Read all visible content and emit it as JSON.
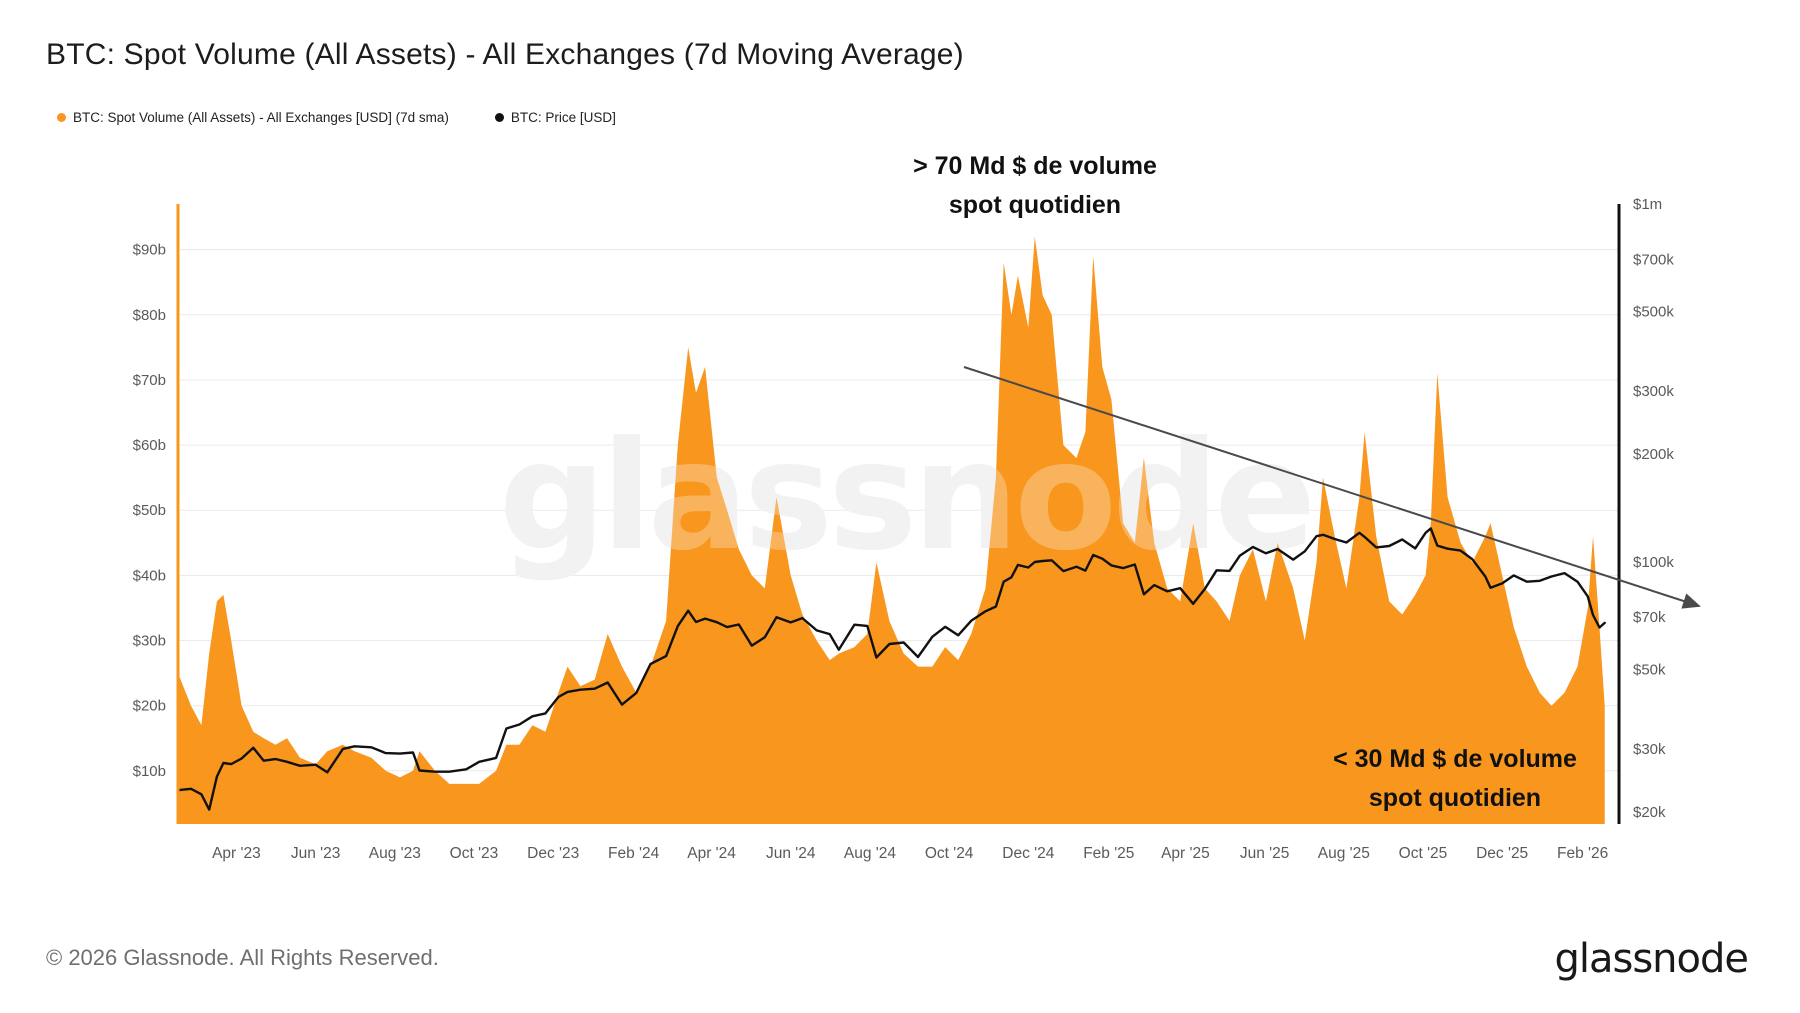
{
  "header": {
    "title": "BTC: Spot Volume (All Assets) - All Exchanges (7d Moving Average)",
    "legend": [
      {
        "label": "BTC: Spot Volume (All Assets) - All Exchanges [USD] (7d sma)",
        "color": "#F8961E",
        "marker": "dot"
      },
      {
        "label": "BTC: Price [USD]",
        "color": "#111111",
        "marker": "dot"
      }
    ]
  },
  "annotations": {
    "high_volume": {
      "line1": "> 70 Md $ de volume",
      "line2": "spot quotidien"
    },
    "low_volume": {
      "line1": "< 30 Md $ de volume",
      "line2": "spot quotidien"
    },
    "trend_arrow": {
      "from": [
        964,
        367
      ],
      "to": [
        1699,
        606
      ],
      "color": "#4a4a4a"
    }
  },
  "watermark": {
    "text": "glassnode",
    "color": "#ededed"
  },
  "footer": {
    "copyright": "© 2026 Glassnode. All Rights Reserved.",
    "brand": "glassnode"
  },
  "chart_data": {
    "type": "area+line",
    "title": "BTC: Spot Volume (All Assets) - All Exchanges (7d Moving Average)",
    "legend_position": "top-left",
    "grid": "horizontal",
    "x": [
      "2023-02-15",
      "2023-02-25",
      "2023-03-05",
      "2023-03-11",
      "2023-03-17",
      "2023-03-22",
      "2023-03-28",
      "2023-04-05",
      "2023-04-14",
      "2023-04-22",
      "2023-05-01",
      "2023-05-10",
      "2023-05-20",
      "2023-06-01",
      "2023-06-10",
      "2023-06-22",
      "2023-07-01",
      "2023-07-14",
      "2023-07-25",
      "2023-08-05",
      "2023-08-15",
      "2023-08-20",
      "2023-09-01",
      "2023-09-12",
      "2023-09-25",
      "2023-10-05",
      "2023-10-18",
      "2023-10-26",
      "2023-11-05",
      "2023-11-15",
      "2023-11-25",
      "2023-12-05",
      "2023-12-12",
      "2023-12-22",
      "2024-01-02",
      "2024-01-12",
      "2024-01-23",
      "2024-02-03",
      "2024-02-14",
      "2024-02-26",
      "2024-03-06",
      "2024-03-14",
      "2024-03-20",
      "2024-03-27",
      "2024-04-05",
      "2024-04-13",
      "2024-04-22",
      "2024-05-02",
      "2024-05-12",
      "2024-05-21",
      "2024-06-01",
      "2024-06-10",
      "2024-06-21",
      "2024-07-01",
      "2024-07-08",
      "2024-07-20",
      "2024-07-30",
      "2024-08-06",
      "2024-08-16",
      "2024-08-27",
      "2024-09-07",
      "2024-09-18",
      "2024-09-28",
      "2024-10-08",
      "2024-10-18",
      "2024-10-29",
      "2024-11-06",
      "2024-11-12",
      "2024-11-18",
      "2024-11-23",
      "2024-12-01",
      "2024-12-06",
      "2024-12-12",
      "2024-12-19",
      "2024-12-28",
      "2025-01-07",
      "2025-01-14",
      "2025-01-20",
      "2025-01-27",
      "2025-02-03",
      "2025-02-12",
      "2025-02-21",
      "2025-02-28",
      "2025-03-08",
      "2025-03-18",
      "2025-03-28",
      "2025-04-07",
      "2025-04-16",
      "2025-04-25",
      "2025-05-05",
      "2025-05-13",
      "2025-05-23",
      "2025-06-02",
      "2025-06-11",
      "2025-06-23",
      "2025-07-02",
      "2025-07-11",
      "2025-07-16",
      "2025-07-25",
      "2025-08-03",
      "2025-08-13",
      "2025-08-17",
      "2025-08-26",
      "2025-09-05",
      "2025-09-15",
      "2025-09-25",
      "2025-10-03",
      "2025-10-07",
      "2025-10-12",
      "2025-10-20",
      "2025-10-30",
      "2025-11-08",
      "2025-11-18",
      "2025-11-22",
      "2025-12-01",
      "2025-12-10",
      "2025-12-20",
      "2025-12-30",
      "2026-01-08",
      "2026-01-18",
      "2026-01-28",
      "2026-02-05",
      "2026-02-09",
      "2026-02-14",
      "2026-02-18"
    ],
    "series": [
      {
        "name": "BTC: Spot Volume (All Assets) - All Exchanges [USD] (7d sma)",
        "type": "area",
        "axis": "left",
        "color": "#F8961E",
        "unit": "USD billions",
        "values": [
          25,
          20,
          17,
          28,
          36,
          37,
          30,
          20,
          16,
          15,
          14,
          15,
          12,
          11,
          13,
          14,
          13,
          12,
          10,
          9,
          10,
          13,
          10,
          8,
          8,
          8,
          10,
          14,
          14,
          17,
          16,
          22,
          26,
          23,
          24,
          31,
          26,
          22,
          26,
          33,
          60,
          75,
          68,
          72,
          55,
          50,
          44,
          40,
          38,
          52,
          40,
          34,
          30,
          27,
          28,
          29,
          31,
          42,
          33,
          28,
          26,
          26,
          29,
          27,
          31,
          38,
          55,
          88,
          80,
          86,
          78,
          92,
          83,
          80,
          60,
          58,
          62,
          89,
          72,
          67,
          48,
          45,
          58,
          45,
          38,
          36,
          48,
          38,
          36,
          33,
          40,
          44,
          36,
          45,
          38,
          30,
          42,
          55,
          46,
          38,
          52,
          62,
          46,
          36,
          34,
          37,
          40,
          48,
          71,
          52,
          45,
          42,
          46,
          48,
          40,
          32,
          26,
          22,
          20,
          22,
          26,
          35,
          46,
          32,
          20
        ]
      },
      {
        "name": "BTC: Price [USD]",
        "type": "line",
        "axis": "right",
        "color": "#111111",
        "unit": "USD thousands",
        "values": [
          23.0,
          23.2,
          22.4,
          20.3,
          25.1,
          27.4,
          27.2,
          28.2,
          30.2,
          27.8,
          28.1,
          27.6,
          26.9,
          27.1,
          25.8,
          30.0,
          30.5,
          30.3,
          29.2,
          29.1,
          29.3,
          26.1,
          25.9,
          25.9,
          26.3,
          27.6,
          28.3,
          34.2,
          35.1,
          37.0,
          37.7,
          41.9,
          43.3,
          43.9,
          44.2,
          46.0,
          39.9,
          43.0,
          51.8,
          54.5,
          66.1,
          73.0,
          67.9,
          69.4,
          67.8,
          65.7,
          66.8,
          58.3,
          61.5,
          70.0,
          67.7,
          69.6,
          64.3,
          62.8,
          56.8,
          66.7,
          66.2,
          54.0,
          58.9,
          59.5,
          54.2,
          61.7,
          65.8,
          62.3,
          68.4,
          72.7,
          75.0,
          88.0,
          90.5,
          98.0,
          96.4,
          99.9,
          100.5,
          101.0,
          94.2,
          96.9,
          94.5,
          104.5,
          102.0,
          97.7,
          96.0,
          98.3,
          81.1,
          86.1,
          82.7,
          84.4,
          76.3,
          84.0,
          94.7,
          94.3,
          104.1,
          110.0,
          105.6,
          108.6,
          101.4,
          107.0,
          117.9,
          119.0,
          115.8,
          113.2,
          120.5,
          117.4,
          109.7,
          110.7,
          115.4,
          109.0,
          120.5,
          124.0,
          111.0,
          108.8,
          107.5,
          101.7,
          91.0,
          84.6,
          87.0,
          91.6,
          88.0,
          88.5,
          91.0,
          93.0,
          88.0,
          80.0,
          71.0,
          65.5,
          67.5
        ]
      }
    ],
    "left_axis": {
      "scale": "linear",
      "unit": "USD billions",
      "min": 0,
      "max": 97,
      "ticks": [
        {
          "value": 10,
          "label": "$10b"
        },
        {
          "value": 20,
          "label": "$20b"
        },
        {
          "value": 30,
          "label": "$30b"
        },
        {
          "value": 40,
          "label": "$40b"
        },
        {
          "value": 50,
          "label": "$50b"
        },
        {
          "value": 60,
          "label": "$60b"
        },
        {
          "value": 70,
          "label": "$70b"
        },
        {
          "value": 80,
          "label": "$80b"
        },
        {
          "value": 90,
          "label": "$90b"
        }
      ]
    },
    "right_axis": {
      "scale": "log",
      "unit": "USD thousands",
      "min_k": 18.5,
      "max_k": 1000,
      "ticks": [
        {
          "value": 20,
          "label": "$20k"
        },
        {
          "value": 30,
          "label": "$30k"
        },
        {
          "value": 50,
          "label": "$50k"
        },
        {
          "value": 70,
          "label": "$70k"
        },
        {
          "value": 100,
          "label": "$100k"
        },
        {
          "value": 200,
          "label": "$200k"
        },
        {
          "value": 300,
          "label": "$300k"
        },
        {
          "value": 500,
          "label": "$500k"
        },
        {
          "value": 700,
          "label": "$700k"
        },
        {
          "value": 1000,
          "label": "$1m"
        }
      ]
    },
    "x_axis": {
      "domain": [
        "2023-02-15",
        "2026-03-01"
      ],
      "ticks": [
        {
          "date": "2023-04-01",
          "label": "Apr '23"
        },
        {
          "date": "2023-06-01",
          "label": "Jun '23"
        },
        {
          "date": "2023-08-01",
          "label": "Aug '23"
        },
        {
          "date": "2023-10-01",
          "label": "Oct '23"
        },
        {
          "date": "2023-12-01",
          "label": "Dec '23"
        },
        {
          "date": "2024-02-01",
          "label": "Feb '24"
        },
        {
          "date": "2024-04-01",
          "label": "Apr '24"
        },
        {
          "date": "2024-06-01",
          "label": "Jun '24"
        },
        {
          "date": "2024-08-01",
          "label": "Aug '24"
        },
        {
          "date": "2024-10-01",
          "label": "Oct '24"
        },
        {
          "date": "2024-12-01",
          "label": "Dec '24"
        },
        {
          "date": "2025-02-01",
          "label": "Feb '25"
        },
        {
          "date": "2025-04-01",
          "label": "Apr '25"
        },
        {
          "date": "2025-06-01",
          "label": "Jun '25"
        },
        {
          "date": "2025-08-01",
          "label": "Aug '25"
        },
        {
          "date": "2025-10-01",
          "label": "Oct '25"
        },
        {
          "date": "2025-12-01",
          "label": "Dec '25"
        },
        {
          "date": "2026-02-01",
          "label": "Feb '26"
        }
      ]
    }
  }
}
